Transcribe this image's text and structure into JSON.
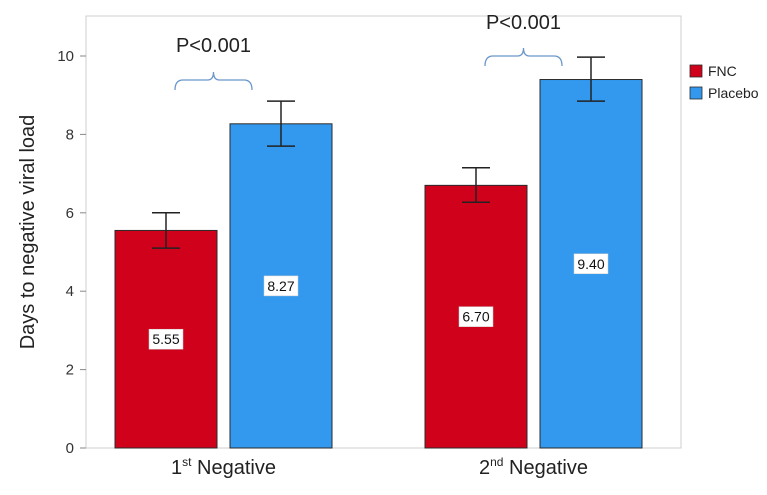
{
  "chart_data": {
    "type": "bar",
    "ylabel": "Days to negative viral load",
    "ylim": [
      0,
      10
    ],
    "yticks": [
      0,
      2,
      4,
      6,
      8,
      10
    ],
    "categories": [
      {
        "prefix": "1",
        "sup": "st",
        "suffix": " Negative"
      },
      {
        "prefix": "2",
        "sup": "nd",
        "suffix": " Negative"
      }
    ],
    "series": [
      {
        "name": "FNC",
        "color": "#D0021B",
        "values": [
          5.55,
          6.7
        ],
        "labels": [
          "5.55",
          "6.70"
        ],
        "err_low": [
          5.1,
          6.27
        ],
        "err_high": [
          6.0,
          7.15
        ]
      },
      {
        "name": "Placebo",
        "color": "#3399EE",
        "values": [
          8.27,
          9.4
        ],
        "labels": [
          "8.27",
          "9.40"
        ],
        "err_low": [
          7.7,
          8.85
        ],
        "err_high": [
          8.85,
          9.97
        ]
      }
    ],
    "annotations": [
      {
        "text": "P<0.001",
        "category_index": 0
      },
      {
        "text": "P<0.001",
        "category_index": 1
      }
    ],
    "legend": {
      "position": "right",
      "entries": [
        "FNC",
        "Placebo"
      ]
    },
    "grid": false
  }
}
